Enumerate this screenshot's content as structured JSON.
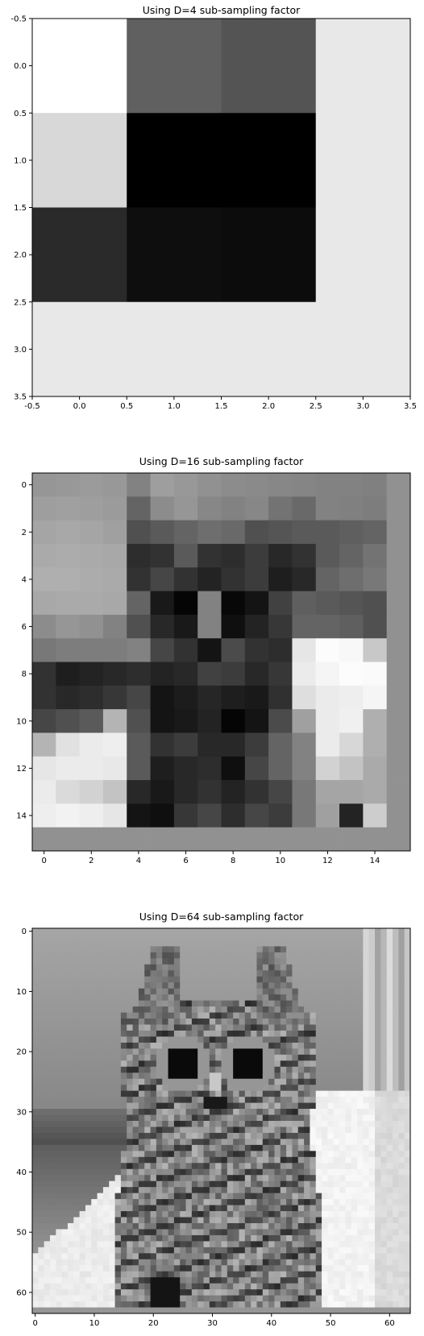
{
  "chart_data": [
    {
      "type": "heatmap",
      "title": "Using D=4 sub-sampling factor",
      "colormap": "gray",
      "xlim": [
        -0.5,
        3.5
      ],
      "ylim": [
        3.5,
        -0.5
      ],
      "xticks": [
        "-0.5",
        "0.0",
        "0.5",
        "1.0",
        "1.5",
        "2.0",
        "2.5",
        "3.0",
        "3.5"
      ],
      "yticks": [
        "-0.5",
        "0.0",
        "0.5",
        "1.0",
        "1.5",
        "2.0",
        "2.5",
        "3.0",
        "3.5"
      ],
      "values": [
        [
          255,
          96,
          84,
          232
        ],
        [
          216,
          0,
          0,
          232
        ],
        [
          42,
          14,
          12,
          232
        ],
        [
          232,
          232,
          232,
          232
        ]
      ]
    },
    {
      "type": "heatmap",
      "title": "Using D=16 sub-sampling factor",
      "colormap": "gray",
      "xlim": [
        -0.5,
        15.5
      ],
      "ylim": [
        15.5,
        -0.5
      ],
      "xticks": [
        "0",
        "2",
        "4",
        "6",
        "8",
        "10",
        "12",
        "14"
      ],
      "yticks": [
        "0",
        "2",
        "4",
        "6",
        "8",
        "10",
        "12",
        "14"
      ],
      "values": [
        [
          150,
          152,
          155,
          152,
          130,
          158,
          152,
          145,
          140,
          138,
          135,
          133,
          130,
          130,
          128,
          145
        ],
        [
          158,
          160,
          158,
          155,
          100,
          140,
          150,
          135,
          130,
          135,
          115,
          105,
          130,
          128,
          125,
          145
        ],
        [
          165,
          168,
          165,
          160,
          80,
          90,
          100,
          110,
          105,
          80,
          85,
          90,
          90,
          95,
          100,
          145
        ],
        [
          170,
          172,
          170,
          168,
          45,
          50,
          90,
          50,
          45,
          60,
          40,
          50,
          90,
          100,
          115,
          145
        ],
        [
          175,
          175,
          172,
          170,
          50,
          70,
          50,
          35,
          50,
          60,
          30,
          40,
          100,
          110,
          120,
          145
        ],
        [
          168,
          170,
          170,
          168,
          100,
          25,
          5,
          130,
          8,
          20,
          65,
          95,
          90,
          85,
          80,
          145
        ],
        [
          140,
          150,
          145,
          130,
          80,
          40,
          25,
          130,
          15,
          35,
          55,
          100,
          100,
          95,
          80,
          145
        ],
        [
          120,
          125,
          125,
          125,
          130,
          70,
          50,
          20,
          75,
          50,
          45,
          230,
          252,
          248,
          200,
          145
        ],
        [
          50,
          30,
          35,
          40,
          45,
          35,
          40,
          65,
          60,
          40,
          55,
          235,
          245,
          252,
          250,
          145
        ],
        [
          50,
          40,
          45,
          55,
          70,
          20,
          28,
          38,
          30,
          25,
          48,
          222,
          235,
          238,
          245,
          145
        ],
        [
          70,
          80,
          90,
          180,
          80,
          20,
          25,
          35,
          5,
          20,
          75,
          160,
          235,
          240,
          175,
          145
        ],
        [
          180,
          225,
          235,
          238,
          90,
          50,
          60,
          40,
          40,
          60,
          100,
          130,
          235,
          215,
          175,
          145
        ],
        [
          230,
          235,
          235,
          232,
          90,
          30,
          40,
          45,
          15,
          70,
          100,
          130,
          210,
          195,
          170,
          145
        ],
        [
          235,
          218,
          210,
          195,
          40,
          25,
          40,
          50,
          35,
          50,
          70,
          120,
          165,
          165,
          170,
          145
        ],
        [
          238,
          242,
          238,
          230,
          20,
          15,
          55,
          70,
          45,
          70,
          60,
          120,
          160,
          35,
          205,
          145
        ],
        [
          145,
          145,
          145,
          145,
          145,
          145,
          145,
          145,
          145,
          145,
          145,
          145,
          145,
          145,
          145,
          145
        ]
      ]
    },
    {
      "type": "heatmap",
      "title": "Using D=64 sub-sampling factor",
      "colormap": "gray",
      "xlim": [
        -0.5,
        63.5
      ],
      "ylim": [
        63.5,
        -0.5
      ],
      "xticks": [
        "0",
        "10",
        "20",
        "30",
        "40",
        "50",
        "60"
      ],
      "yticks": [
        "0",
        "10",
        "20",
        "30",
        "40",
        "50",
        "60"
      ]
    }
  ]
}
